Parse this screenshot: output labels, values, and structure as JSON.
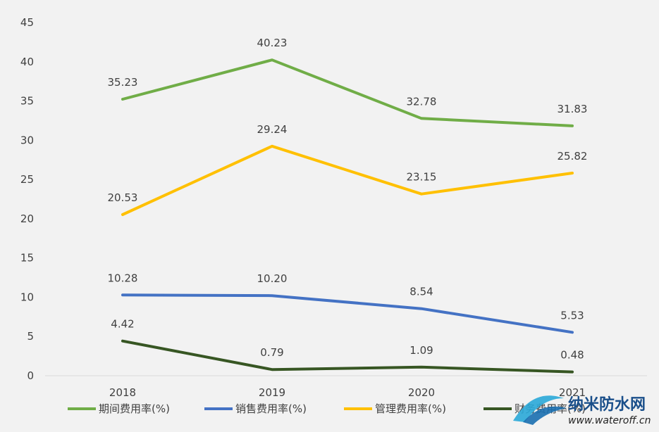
{
  "chart_data": {
    "type": "line",
    "categories": [
      "2018",
      "2019",
      "2020",
      "2021"
    ],
    "ylim": [
      0,
      45
    ],
    "yticks": [
      0,
      5,
      10,
      15,
      20,
      25,
      30,
      35,
      40,
      45
    ],
    "grid": false,
    "legend_position": "bottom",
    "series": [
      {
        "name": "期间费用率(%)",
        "color": "#70ad47",
        "values": [
          35.23,
          40.23,
          32.78,
          31.83
        ]
      },
      {
        "name": "销售费用率(%)",
        "color": "#4472c4",
        "values": [
          10.28,
          10.2,
          8.54,
          5.53
        ]
      },
      {
        "name": "管理费用率(%)",
        "color": "#ffc000",
        "values": [
          20.53,
          29.24,
          23.15,
          25.82
        ]
      },
      {
        "name": "财务费用率(%)",
        "color": "#375623",
        "values": [
          4.42,
          0.79,
          1.09,
          0.48
        ]
      }
    ]
  },
  "watermark": {
    "title": "纳米防水网",
    "url": "www.wateroff.cn",
    "icon": "wave-logo-icon"
  }
}
